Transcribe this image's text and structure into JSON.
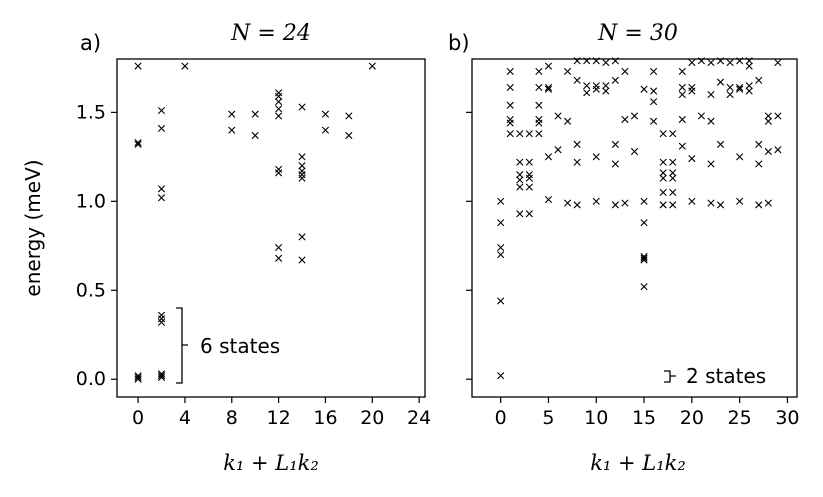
{
  "chart_data": [
    {
      "type": "scatter",
      "panel_label": "a)",
      "title": "N = 24",
      "xlabel": "k₁ + L₁k₂",
      "ylabel": "energy (meV)",
      "xlim": [
        -1.8,
        24.5
      ],
      "ylim": [
        -0.1,
        1.8
      ],
      "xticks": [
        0,
        4,
        8,
        12,
        16,
        20,
        24
      ],
      "yticks": [
        0.0,
        0.5,
        1.0,
        1.5
      ],
      "ytick_labels": [
        "0.0",
        "0.5",
        "1.0",
        "1.5"
      ],
      "marker": "x",
      "annotation": "6 states",
      "points": [
        [
          0,
          0.0
        ],
        [
          0,
          0.01
        ],
        [
          0,
          0.02
        ],
        [
          0,
          1.32
        ],
        [
          0,
          1.33
        ],
        [
          0,
          1.76
        ],
        [
          2,
          0.01
        ],
        [
          2,
          0.02
        ],
        [
          2,
          0.03
        ],
        [
          2,
          0.32
        ],
        [
          2,
          0.34
        ],
        [
          2,
          0.36
        ],
        [
          2,
          1.02
        ],
        [
          2,
          1.07
        ],
        [
          2,
          1.41
        ],
        [
          2,
          1.51
        ],
        [
          4,
          1.76
        ],
        [
          8,
          1.4
        ],
        [
          8,
          1.49
        ],
        [
          10,
          1.37
        ],
        [
          10,
          1.49
        ],
        [
          12,
          0.68
        ],
        [
          12,
          0.74
        ],
        [
          12,
          1.16
        ],
        [
          12,
          1.18
        ],
        [
          12,
          1.48
        ],
        [
          12,
          1.52
        ],
        [
          12,
          1.56
        ],
        [
          12,
          1.59
        ],
        [
          12,
          1.61
        ],
        [
          14,
          0.67
        ],
        [
          14,
          0.8
        ],
        [
          14,
          1.13
        ],
        [
          14,
          1.15
        ],
        [
          14,
          1.17
        ],
        [
          14,
          1.2
        ],
        [
          14,
          1.25
        ],
        [
          14,
          1.53
        ],
        [
          16,
          1.4
        ],
        [
          16,
          1.49
        ],
        [
          18,
          1.37
        ],
        [
          18,
          1.48
        ],
        [
          20,
          1.76
        ]
      ]
    },
    {
      "type": "scatter",
      "panel_label": "b)",
      "title": "N = 30",
      "xlabel": "k₁ + L₁k₂",
      "ylabel": "",
      "xlim": [
        -3,
        31
      ],
      "ylim": [
        -0.1,
        1.8
      ],
      "xticks": [
        0,
        5,
        10,
        15,
        20,
        25,
        30
      ],
      "yticks": [
        0.0,
        0.5,
        1.0,
        1.5
      ],
      "marker": "x",
      "annotation": "2 states",
      "points": [
        [
          0,
          0.02
        ],
        [
          0,
          0.44
        ],
        [
          0,
          0.7
        ],
        [
          0,
          0.74
        ],
        [
          0,
          0.88
        ],
        [
          0,
          1.0
        ],
        [
          1,
          1.38
        ],
        [
          1,
          1.44
        ],
        [
          1,
          1.46
        ],
        [
          1,
          1.54
        ],
        [
          1,
          1.64
        ],
        [
          1,
          1.73
        ],
        [
          2,
          0.93
        ],
        [
          2,
          1.08
        ],
        [
          2,
          1.12
        ],
        [
          2,
          1.15
        ],
        [
          2,
          1.22
        ],
        [
          2,
          1.38
        ],
        [
          3,
          0.93
        ],
        [
          3,
          1.08
        ],
        [
          3,
          1.13
        ],
        [
          3,
          1.15
        ],
        [
          3,
          1.22
        ],
        [
          3,
          1.38
        ],
        [
          4,
          1.38
        ],
        [
          4,
          1.44
        ],
        [
          4,
          1.46
        ],
        [
          4,
          1.54
        ],
        [
          4,
          1.64
        ],
        [
          4,
          1.73
        ],
        [
          5,
          1.01
        ],
        [
          5,
          1.25
        ],
        [
          5,
          1.63
        ],
        [
          5,
          1.64
        ],
        [
          5,
          1.76
        ],
        [
          6,
          1.29
        ],
        [
          6,
          1.48
        ],
        [
          7,
          0.99
        ],
        [
          7,
          1.45
        ],
        [
          7,
          1.73
        ],
        [
          8,
          0.98
        ],
        [
          8,
          1.22
        ],
        [
          8,
          1.32
        ],
        [
          8,
          1.68
        ],
        [
          8,
          1.79
        ],
        [
          9,
          1.61
        ],
        [
          9,
          1.65
        ],
        [
          9,
          1.79
        ],
        [
          10,
          1.0
        ],
        [
          10,
          1.25
        ],
        [
          10,
          1.63
        ],
        [
          10,
          1.65
        ],
        [
          10,
          1.79
        ],
        [
          11,
          1.62
        ],
        [
          11,
          1.65
        ],
        [
          11,
          1.78
        ],
        [
          12,
          0.98
        ],
        [
          12,
          1.21
        ],
        [
          12,
          1.32
        ],
        [
          12,
          1.68
        ],
        [
          12,
          1.79
        ],
        [
          13,
          0.99
        ],
        [
          13,
          1.46
        ],
        [
          13,
          1.73
        ],
        [
          14,
          1.28
        ],
        [
          14,
          1.48
        ],
        [
          15,
          0.52
        ],
        [
          15,
          0.67
        ],
        [
          15,
          0.68
        ],
        [
          15,
          0.69
        ],
        [
          15,
          0.88
        ],
        [
          15,
          1.0
        ],
        [
          15,
          1.63
        ],
        [
          16,
          1.45
        ],
        [
          16,
          1.56
        ],
        [
          16,
          1.62
        ],
        [
          16,
          1.73
        ],
        [
          17,
          0.98
        ],
        [
          17,
          1.05
        ],
        [
          17,
          1.13
        ],
        [
          17,
          1.16
        ],
        [
          17,
          1.22
        ],
        [
          17,
          1.38
        ],
        [
          18,
          0.98
        ],
        [
          18,
          1.05
        ],
        [
          18,
          1.13
        ],
        [
          18,
          1.16
        ],
        [
          18,
          1.22
        ],
        [
          18,
          1.38
        ],
        [
          19,
          1.31
        ],
        [
          19,
          1.46
        ],
        [
          19,
          1.6
        ],
        [
          19,
          1.64
        ],
        [
          19,
          1.73
        ],
        [
          20,
          1.0
        ],
        [
          20,
          1.24
        ],
        [
          20,
          1.62
        ],
        [
          20,
          1.64
        ],
        [
          20,
          1.78
        ],
        [
          21,
          1.48
        ],
        [
          21,
          1.79
        ],
        [
          22,
          0.99
        ],
        [
          22,
          1.21
        ],
        [
          22,
          1.45
        ],
        [
          22,
          1.6
        ],
        [
          22,
          1.78
        ],
        [
          23,
          0.98
        ],
        [
          23,
          1.32
        ],
        [
          23,
          1.67
        ],
        [
          23,
          1.79
        ],
        [
          24,
          1.6
        ],
        [
          24,
          1.64
        ],
        [
          24,
          1.78
        ],
        [
          25,
          1.0
        ],
        [
          25,
          1.25
        ],
        [
          25,
          1.63
        ],
        [
          25,
          1.64
        ],
        [
          25,
          1.79
        ],
        [
          26,
          1.62
        ],
        [
          26,
          1.65
        ],
        [
          26,
          1.76
        ],
        [
          26,
          1.79
        ],
        [
          27,
          0.98
        ],
        [
          27,
          1.21
        ],
        [
          27,
          1.32
        ],
        [
          27,
          1.68
        ],
        [
          28,
          0.99
        ],
        [
          28,
          1.28
        ],
        [
          28,
          1.45
        ],
        [
          28,
          1.48
        ],
        [
          29,
          1.29
        ],
        [
          29,
          1.48
        ],
        [
          29,
          1.78
        ]
      ]
    }
  ]
}
